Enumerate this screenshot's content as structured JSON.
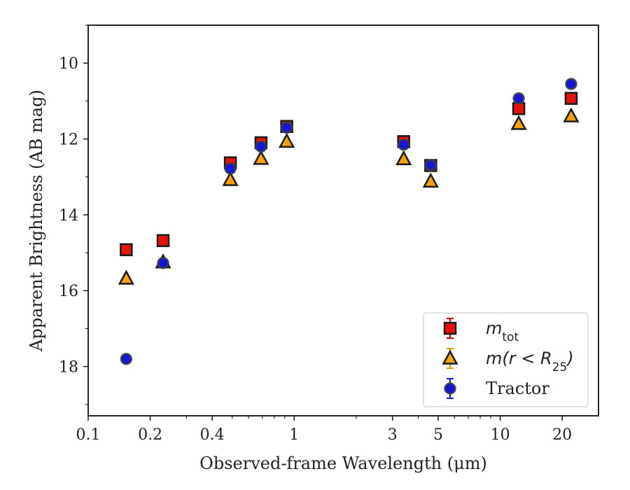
{
  "chart_data": {
    "type": "scatter",
    "xlabel": "Observed-frame Wavelength (μm)",
    "ylabel": "Apparent Brightness (AB mag)",
    "xscale": "log",
    "xlim": [
      0.1,
      30
    ],
    "ylim": [
      19.3,
      9.0
    ],
    "y_inverted": true,
    "grid": false,
    "legend_position": "lower-right",
    "x_ticks": [
      0.1,
      0.2,
      0.4,
      1,
      3,
      5,
      10,
      20
    ],
    "x_tick_labels": [
      "0.1",
      "0.2",
      "0.4",
      "1",
      "3",
      "5",
      "10",
      "20"
    ],
    "y_ticks": [
      10,
      12,
      14,
      16,
      18
    ],
    "y_tick_labels": [
      "10",
      "12",
      "14",
      "16",
      "18"
    ],
    "series": [
      {
        "name": "m_tot",
        "legend_html": "m<tspan baseline-shift=\"sub\" font-size=\"17\" font-style=\"normal\">tot</tspan>",
        "marker": "square",
        "color": "#e8120c",
        "edge_color": "#1a1a1a",
        "errorbar_color": "#cc1010",
        "points": [
          {
            "x": 0.153,
            "y": 14.92
          },
          {
            "x": 0.231,
            "y": 14.68
          },
          {
            "x": 0.49,
            "y": 12.63
          },
          {
            "x": 0.69,
            "y": 12.1
          },
          {
            "x": 0.92,
            "y": 11.67
          },
          {
            "x": 3.4,
            "y": 12.07
          },
          {
            "x": 4.6,
            "y": 12.7
          },
          {
            "x": 12.3,
            "y": 11.2
          },
          {
            "x": 22.1,
            "y": 10.93
          }
        ]
      },
      {
        "name": "m(r < R25)",
        "marker": "triangle",
        "color": "#f5a10a",
        "edge_color": "#1a1a1a",
        "errorbar_color": "#e89b0a",
        "points": [
          {
            "x": 0.153,
            "y": 15.68
          },
          {
            "x": 0.231,
            "y": 15.25
          },
          {
            "x": 0.49,
            "y": 13.08
          },
          {
            "x": 0.69,
            "y": 12.52
          },
          {
            "x": 0.92,
            "y": 12.07
          },
          {
            "x": 3.4,
            "y": 12.53
          },
          {
            "x": 4.6,
            "y": 13.12
          },
          {
            "x": 12.3,
            "y": 11.6
          },
          {
            "x": 22.1,
            "y": 11.4
          }
        ]
      },
      {
        "name": "Tractor",
        "marker": "circle",
        "color": "#1515d8",
        "edge_color": "#404040",
        "errorbar_color": "#1a2ad8",
        "points": [
          {
            "x": 0.153,
            "y": 17.8
          },
          {
            "x": 0.231,
            "y": 15.27
          },
          {
            "x": 0.49,
            "y": 12.78
          },
          {
            "x": 0.69,
            "y": 12.2
          },
          {
            "x": 0.92,
            "y": 11.7
          },
          {
            "x": 3.4,
            "y": 12.15
          },
          {
            "x": 4.6,
            "y": 12.69
          },
          {
            "x": 12.3,
            "y": 10.93
          },
          {
            "x": 22.1,
            "y": 10.55
          }
        ]
      }
    ]
  }
}
